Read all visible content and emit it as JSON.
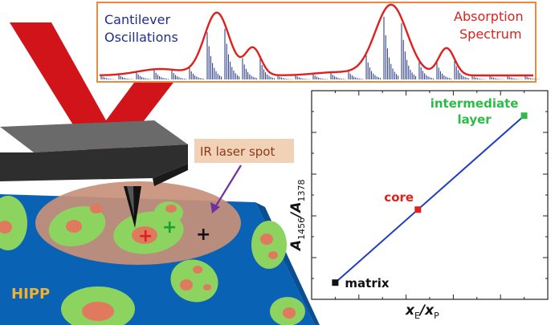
{
  "spectrum_box": {
    "left_label_line1": "Cantilever",
    "left_label_line2": "Oscillations",
    "right_label_line1": "Absorption",
    "right_label_line2": "Spectrum",
    "left_label_color": "#1f2f8a",
    "right_label_color": "#e0201b",
    "border_color": "#f0883c"
  },
  "sample": {
    "laser_spot_label": "IR laser spot",
    "matrix_label": "HIPP",
    "matrix_label_color": "#f0b030",
    "matrix_color": "#0a62b4",
    "particle_color": "#8dd35f",
    "core_color": "#e07a5f",
    "spot_color": "#c8907a",
    "markers": [
      "+",
      "+",
      "+"
    ]
  },
  "plot": {
    "ylabel_main": "A",
    "ylabel_sub1": "1456",
    "ylabel_sep": "/",
    "ylabel_sub2": "1378",
    "xlabel_main1": "x",
    "xlabel_sub1": "E",
    "xlabel_sep": "/",
    "xlabel_main2": "x",
    "xlabel_sub2": "P",
    "line_color": "#1f3fbf"
  },
  "chart_data": {
    "type": "line",
    "x": [
      0.1,
      0.45,
      0.9
    ],
    "y": [
      0.08,
      0.43,
      0.88
    ],
    "points": [
      {
        "label": "matrix",
        "color": "#111111"
      },
      {
        "label": "core",
        "color": "#e0201b"
      },
      {
        "label": "intermediate layer",
        "label_line1": "intermediate",
        "label_line2": "layer",
        "color": "#2dbb48"
      }
    ],
    "xlim": [
      0,
      1
    ],
    "ylim": [
      0,
      1
    ]
  }
}
